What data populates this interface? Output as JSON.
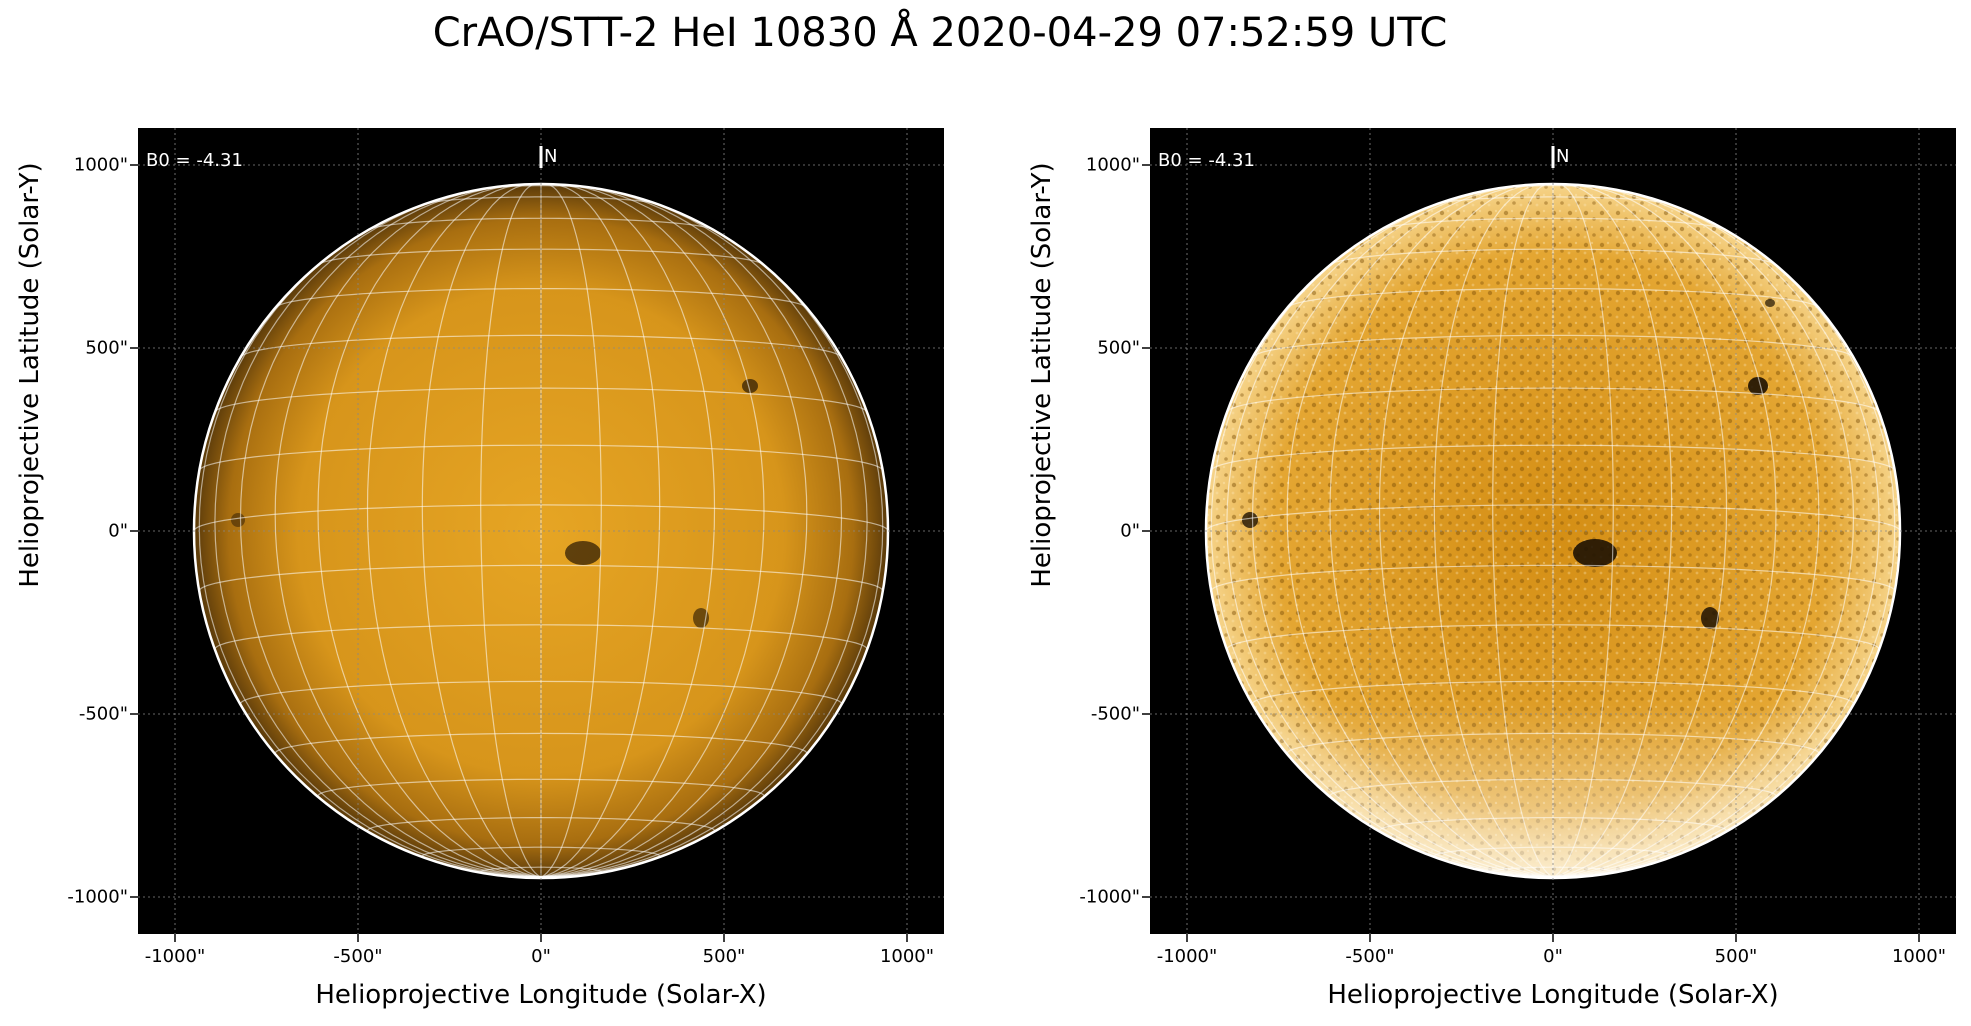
{
  "title": "CrAO/STT-2 HeI 10830 Å 2020-04-29 07:52:59 UTC",
  "panels": [
    {
      "id": "left",
      "b0_label": "B0 = -4.31",
      "north_label": "N",
      "xlabel": "Helioprojective Longitude (Solar-X)",
      "ylabel": "Helioprojective Latitude (Solar-Y)",
      "xticks": [
        "-1000\"",
        "-500\"",
        "0\"",
        "500\"",
        "1000\""
      ],
      "yticks": [
        "1000\"",
        "500\"",
        "0\"",
        "-500\"",
        "-1000\""
      ],
      "contrast": "normal"
    },
    {
      "id": "right",
      "b0_label": "B0 = -4.31",
      "north_label": "N",
      "xlabel": "Helioprojective Longitude (Solar-X)",
      "ylabel": "Helioprojective Latitude (Solar-Y)",
      "xticks": [
        "-1000\"",
        "-500\"",
        "0\"",
        "500\"",
        "1000\""
      ],
      "yticks": [
        "1000\"",
        "500\"",
        "0\"",
        "-500\"",
        "-1000\""
      ],
      "contrast": "enhanced"
    }
  ],
  "colors": {
    "disk": "#d99a1a",
    "disk_bright": "#f2b84a",
    "disk_limb": "#5a3a0a",
    "background": "#000000",
    "grid": "#ffffff"
  }
}
